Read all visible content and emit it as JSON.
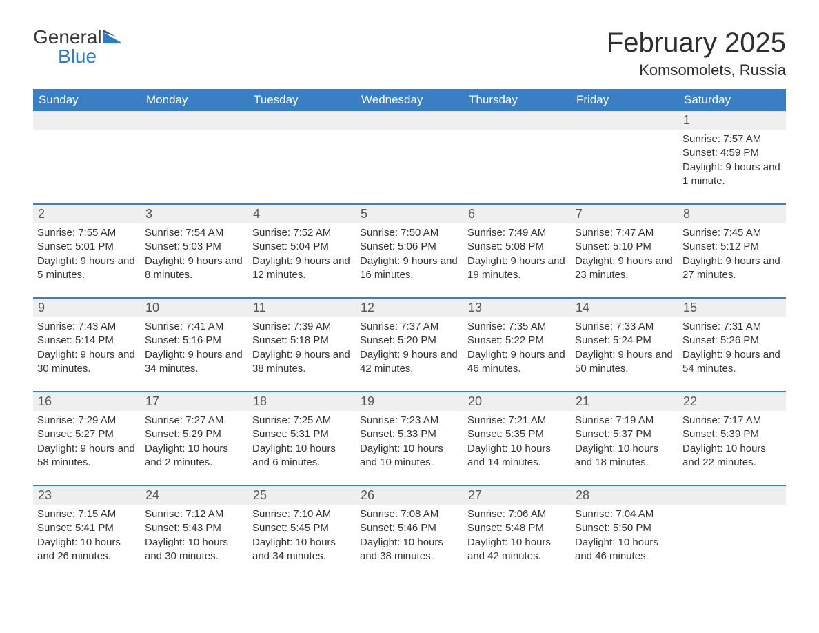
{
  "brand": {
    "word1": "General",
    "word2": "Blue"
  },
  "title": "February 2025",
  "location": "Komsomolets, Russia",
  "colors": {
    "header_bg": "#3a7fc4",
    "header_text": "#ffffff",
    "daynum_bg": "#efefef",
    "rule": "#3a7fc4",
    "text": "#333333",
    "brand_blue": "#2d7cc7",
    "brand_dark": "#3a3a3a",
    "page_bg": "#ffffff"
  },
  "typography": {
    "title_fontsize": 40,
    "location_fontsize": 22,
    "dayname_fontsize": 17,
    "daynum_fontsize": 18,
    "body_fontsize": 15
  },
  "daynames": [
    "Sunday",
    "Monday",
    "Tuesday",
    "Wednesday",
    "Thursday",
    "Friday",
    "Saturday"
  ],
  "weeks": [
    [
      null,
      null,
      null,
      null,
      null,
      null,
      {
        "n": "1",
        "sunrise": "Sunrise: 7:57 AM",
        "sunset": "Sunset: 4:59 PM",
        "daylight": "Daylight: 9 hours and 1 minute."
      }
    ],
    [
      {
        "n": "2",
        "sunrise": "Sunrise: 7:55 AM",
        "sunset": "Sunset: 5:01 PM",
        "daylight": "Daylight: 9 hours and 5 minutes."
      },
      {
        "n": "3",
        "sunrise": "Sunrise: 7:54 AM",
        "sunset": "Sunset: 5:03 PM",
        "daylight": "Daylight: 9 hours and 8 minutes."
      },
      {
        "n": "4",
        "sunrise": "Sunrise: 7:52 AM",
        "sunset": "Sunset: 5:04 PM",
        "daylight": "Daylight: 9 hours and 12 minutes."
      },
      {
        "n": "5",
        "sunrise": "Sunrise: 7:50 AM",
        "sunset": "Sunset: 5:06 PM",
        "daylight": "Daylight: 9 hours and 16 minutes."
      },
      {
        "n": "6",
        "sunrise": "Sunrise: 7:49 AM",
        "sunset": "Sunset: 5:08 PM",
        "daylight": "Daylight: 9 hours and 19 minutes."
      },
      {
        "n": "7",
        "sunrise": "Sunrise: 7:47 AM",
        "sunset": "Sunset: 5:10 PM",
        "daylight": "Daylight: 9 hours and 23 minutes."
      },
      {
        "n": "8",
        "sunrise": "Sunrise: 7:45 AM",
        "sunset": "Sunset: 5:12 PM",
        "daylight": "Daylight: 9 hours and 27 minutes."
      }
    ],
    [
      {
        "n": "9",
        "sunrise": "Sunrise: 7:43 AM",
        "sunset": "Sunset: 5:14 PM",
        "daylight": "Daylight: 9 hours and 30 minutes."
      },
      {
        "n": "10",
        "sunrise": "Sunrise: 7:41 AM",
        "sunset": "Sunset: 5:16 PM",
        "daylight": "Daylight: 9 hours and 34 minutes."
      },
      {
        "n": "11",
        "sunrise": "Sunrise: 7:39 AM",
        "sunset": "Sunset: 5:18 PM",
        "daylight": "Daylight: 9 hours and 38 minutes."
      },
      {
        "n": "12",
        "sunrise": "Sunrise: 7:37 AM",
        "sunset": "Sunset: 5:20 PM",
        "daylight": "Daylight: 9 hours and 42 minutes."
      },
      {
        "n": "13",
        "sunrise": "Sunrise: 7:35 AM",
        "sunset": "Sunset: 5:22 PM",
        "daylight": "Daylight: 9 hours and 46 minutes."
      },
      {
        "n": "14",
        "sunrise": "Sunrise: 7:33 AM",
        "sunset": "Sunset: 5:24 PM",
        "daylight": "Daylight: 9 hours and 50 minutes."
      },
      {
        "n": "15",
        "sunrise": "Sunrise: 7:31 AM",
        "sunset": "Sunset: 5:26 PM",
        "daylight": "Daylight: 9 hours and 54 minutes."
      }
    ],
    [
      {
        "n": "16",
        "sunrise": "Sunrise: 7:29 AM",
        "sunset": "Sunset: 5:27 PM",
        "daylight": "Daylight: 9 hours and 58 minutes."
      },
      {
        "n": "17",
        "sunrise": "Sunrise: 7:27 AM",
        "sunset": "Sunset: 5:29 PM",
        "daylight": "Daylight: 10 hours and 2 minutes."
      },
      {
        "n": "18",
        "sunrise": "Sunrise: 7:25 AM",
        "sunset": "Sunset: 5:31 PM",
        "daylight": "Daylight: 10 hours and 6 minutes."
      },
      {
        "n": "19",
        "sunrise": "Sunrise: 7:23 AM",
        "sunset": "Sunset: 5:33 PM",
        "daylight": "Daylight: 10 hours and 10 minutes."
      },
      {
        "n": "20",
        "sunrise": "Sunrise: 7:21 AM",
        "sunset": "Sunset: 5:35 PM",
        "daylight": "Daylight: 10 hours and 14 minutes."
      },
      {
        "n": "21",
        "sunrise": "Sunrise: 7:19 AM",
        "sunset": "Sunset: 5:37 PM",
        "daylight": "Daylight: 10 hours and 18 minutes."
      },
      {
        "n": "22",
        "sunrise": "Sunrise: 7:17 AM",
        "sunset": "Sunset: 5:39 PM",
        "daylight": "Daylight: 10 hours and 22 minutes."
      }
    ],
    [
      {
        "n": "23",
        "sunrise": "Sunrise: 7:15 AM",
        "sunset": "Sunset: 5:41 PM",
        "daylight": "Daylight: 10 hours and 26 minutes."
      },
      {
        "n": "24",
        "sunrise": "Sunrise: 7:12 AM",
        "sunset": "Sunset: 5:43 PM",
        "daylight": "Daylight: 10 hours and 30 minutes."
      },
      {
        "n": "25",
        "sunrise": "Sunrise: 7:10 AM",
        "sunset": "Sunset: 5:45 PM",
        "daylight": "Daylight: 10 hours and 34 minutes."
      },
      {
        "n": "26",
        "sunrise": "Sunrise: 7:08 AM",
        "sunset": "Sunset: 5:46 PM",
        "daylight": "Daylight: 10 hours and 38 minutes."
      },
      {
        "n": "27",
        "sunrise": "Sunrise: 7:06 AM",
        "sunset": "Sunset: 5:48 PM",
        "daylight": "Daylight: 10 hours and 42 minutes."
      },
      {
        "n": "28",
        "sunrise": "Sunrise: 7:04 AM",
        "sunset": "Sunset: 5:50 PM",
        "daylight": "Daylight: 10 hours and 46 minutes."
      },
      null
    ]
  ]
}
